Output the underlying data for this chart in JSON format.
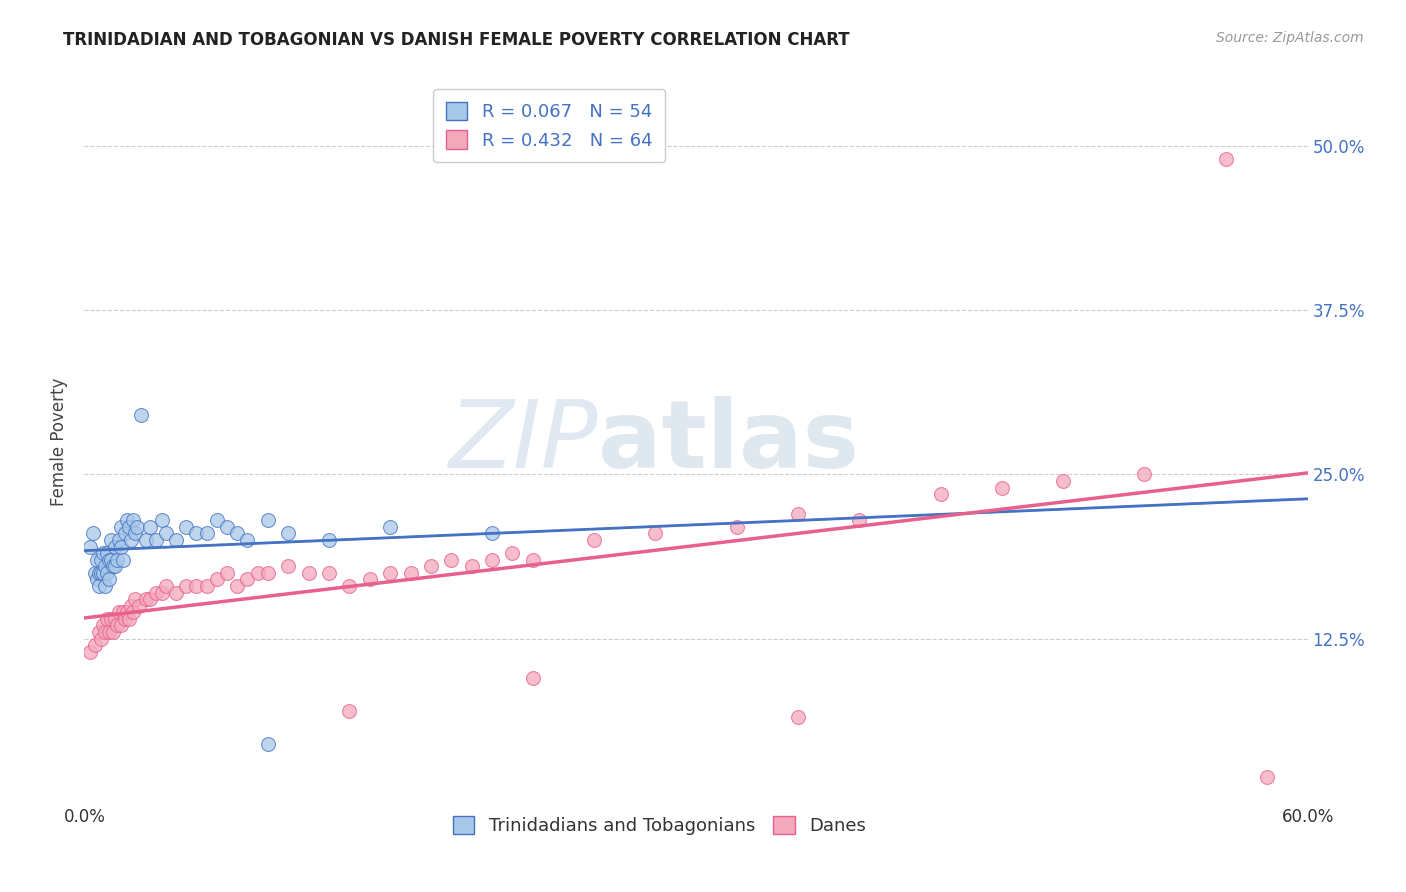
{
  "title": "TRINIDADIAN AND TOBAGONIAN VS DANISH FEMALE POVERTY CORRELATION CHART",
  "source": "Source: ZipAtlas.com",
  "ylabel": "Female Poverty",
  "xmin": 0.0,
  "xmax": 0.6,
  "ymin": 0.0,
  "ymax": 0.55,
  "ytick_positions": [
    0.0,
    0.125,
    0.25,
    0.375,
    0.5
  ],
  "ytick_labels_right": [
    "",
    "12.5%",
    "25.0%",
    "37.5%",
    "50.0%"
  ],
  "xtick_positions": [
    0.0,
    0.1,
    0.2,
    0.3,
    0.4,
    0.5,
    0.6
  ],
  "xtick_labels": [
    "0.0%",
    "",
    "",
    "",
    "",
    "",
    "60.0%"
  ],
  "legend_labels": [
    "Trinidadians and Tobagonians",
    "Danes"
  ],
  "legend_r1": "R = 0.067",
  "legend_n1": "N = 54",
  "legend_r2": "R = 0.432",
  "legend_n2": "N = 64",
  "color_blue": "#A8C8E8",
  "color_pink": "#F4A8BC",
  "line_blue": "#4472C4",
  "line_pink": "#E8608C",
  "watermark_zip": "ZIP",
  "watermark_atlas": "atlas",
  "blue_x": [
    0.003,
    0.004,
    0.005,
    0.006,
    0.006,
    0.007,
    0.007,
    0.008,
    0.008,
    0.009,
    0.009,
    0.01,
    0.01,
    0.011,
    0.011,
    0.012,
    0.012,
    0.013,
    0.013,
    0.014,
    0.015,
    0.015,
    0.016,
    0.017,
    0.018,
    0.018,
    0.019,
    0.02,
    0.021,
    0.022,
    0.023,
    0.024,
    0.025,
    0.026,
    0.028,
    0.03,
    0.032,
    0.035,
    0.038,
    0.04,
    0.045,
    0.05,
    0.055,
    0.06,
    0.065,
    0.07,
    0.075,
    0.08,
    0.09,
    0.1,
    0.12,
    0.15,
    0.2,
    0.09
  ],
  "blue_y": [
    0.195,
    0.205,
    0.175,
    0.185,
    0.17,
    0.175,
    0.165,
    0.185,
    0.175,
    0.19,
    0.175,
    0.18,
    0.165,
    0.19,
    0.175,
    0.185,
    0.17,
    0.2,
    0.185,
    0.18,
    0.195,
    0.18,
    0.185,
    0.2,
    0.21,
    0.195,
    0.185,
    0.205,
    0.215,
    0.21,
    0.2,
    0.215,
    0.205,
    0.21,
    0.295,
    0.2,
    0.21,
    0.2,
    0.215,
    0.205,
    0.2,
    0.21,
    0.205,
    0.205,
    0.215,
    0.21,
    0.205,
    0.2,
    0.215,
    0.205,
    0.2,
    0.21,
    0.205,
    0.045
  ],
  "pink_x": [
    0.003,
    0.005,
    0.007,
    0.008,
    0.009,
    0.01,
    0.011,
    0.012,
    0.013,
    0.014,
    0.015,
    0.016,
    0.017,
    0.018,
    0.019,
    0.02,
    0.021,
    0.022,
    0.023,
    0.024,
    0.025,
    0.027,
    0.03,
    0.032,
    0.035,
    0.038,
    0.04,
    0.045,
    0.05,
    0.055,
    0.06,
    0.065,
    0.07,
    0.075,
    0.08,
    0.085,
    0.09,
    0.1,
    0.11,
    0.12,
    0.13,
    0.14,
    0.15,
    0.16,
    0.17,
    0.18,
    0.19,
    0.2,
    0.21,
    0.22,
    0.25,
    0.28,
    0.32,
    0.35,
    0.38,
    0.42,
    0.45,
    0.48,
    0.52,
    0.56,
    0.22,
    0.13,
    0.35,
    0.58
  ],
  "pink_y": [
    0.115,
    0.12,
    0.13,
    0.125,
    0.135,
    0.13,
    0.14,
    0.13,
    0.14,
    0.13,
    0.14,
    0.135,
    0.145,
    0.135,
    0.145,
    0.14,
    0.145,
    0.14,
    0.15,
    0.145,
    0.155,
    0.15,
    0.155,
    0.155,
    0.16,
    0.16,
    0.165,
    0.16,
    0.165,
    0.165,
    0.165,
    0.17,
    0.175,
    0.165,
    0.17,
    0.175,
    0.175,
    0.18,
    0.175,
    0.175,
    0.165,
    0.17,
    0.175,
    0.175,
    0.18,
    0.185,
    0.18,
    0.185,
    0.19,
    0.185,
    0.2,
    0.205,
    0.21,
    0.22,
    0.215,
    0.235,
    0.24,
    0.245,
    0.25,
    0.49,
    0.095,
    0.07,
    0.065,
    0.02
  ]
}
